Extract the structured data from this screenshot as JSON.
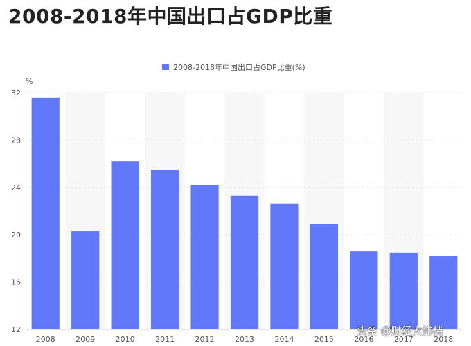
{
  "header": {
    "title": "2008-2018年中国出口占GDP比重"
  },
  "watermark": "头条 @财经大排档",
  "chart_data": {
    "type": "bar",
    "title": "2008-2018年中国出口占GDP比重",
    "xlabel": "",
    "ylabel": "%",
    "ylim": [
      12,
      32
    ],
    "yticks": [
      12,
      16,
      20,
      24,
      28,
      32
    ],
    "grid": true,
    "legend_position": "top-center",
    "categories": [
      "2008",
      "2009",
      "2010",
      "2011",
      "2012",
      "2013",
      "2014",
      "2015",
      "2016",
      "2017",
      "2018"
    ],
    "series": [
      {
        "name": "2008-2018年中国出口占GDP比重(%)",
        "color": "#6078f9",
        "values": [
          31.6,
          20.3,
          26.2,
          25.5,
          24.2,
          23.3,
          22.6,
          20.9,
          18.6,
          18.5,
          18.2
        ]
      }
    ]
  }
}
